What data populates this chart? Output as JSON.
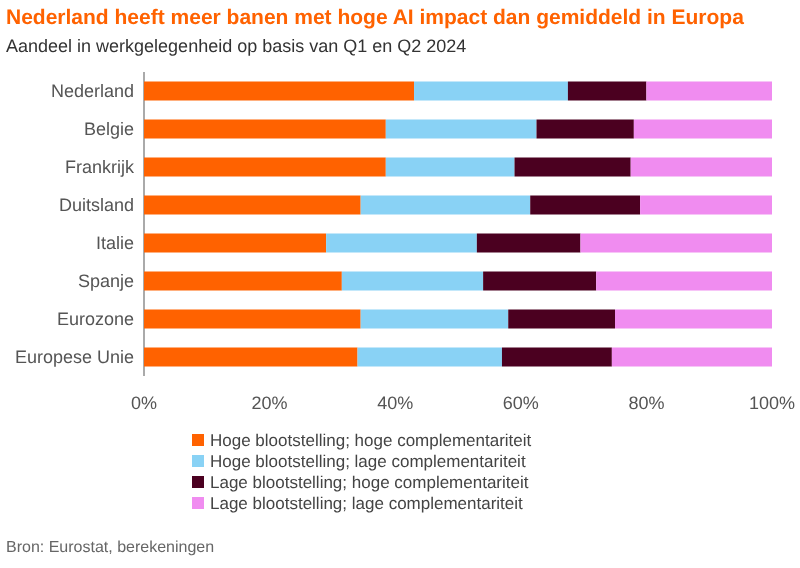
{
  "chart_data": {
    "type": "bar",
    "orientation": "horizontal",
    "stacked": true,
    "title": "Nederland heeft meer banen met hoge AI impact dan gemiddeld in Europa",
    "subtitle": "Aandeel in werkgelegenheid op basis van Q1 en Q2 2024",
    "categories": [
      "Nederland",
      "Belgie",
      "Frankrijk",
      "Duitsland",
      "Italie",
      "Spanje",
      "Eurozone",
      "Europese Unie"
    ],
    "series": [
      {
        "name": "Hoge blootstelling; hoge complementariteit",
        "color": "#ff6200",
        "values": [
          43,
          38.5,
          38.5,
          34.5,
          29,
          31.5,
          34.5,
          34
        ]
      },
      {
        "name": "Hoge blootstelling; lage complementariteit",
        "color": "#89d2f5",
        "values": [
          24.5,
          24,
          20.5,
          27,
          24,
          22.5,
          23.5,
          23
        ]
      },
      {
        "name": "Lage blootstelling; hoge complementariteit",
        "color": "#4b0020",
        "values": [
          12.5,
          15.5,
          18.5,
          17.5,
          16.5,
          18,
          17,
          17.5
        ]
      },
      {
        "name": "Lage blootstelling; lage complementariteit",
        "color": "#f08cf0",
        "values": [
          20,
          22,
          22.5,
          21,
          30.5,
          28,
          25,
          25.5
        ]
      }
    ],
    "xlim": [
      0,
      100
    ],
    "xticks": [
      {
        "value": 0,
        "label": "0%"
      },
      {
        "value": 20,
        "label": "20%"
      },
      {
        "value": 40,
        "label": "40%"
      },
      {
        "value": 60,
        "label": "60%"
      },
      {
        "value": 80,
        "label": "80%"
      },
      {
        "value": 100,
        "label": "100%"
      }
    ],
    "legend": "bottom",
    "annotations": [
      "Bron: Eurostat, berekeningen"
    ]
  }
}
